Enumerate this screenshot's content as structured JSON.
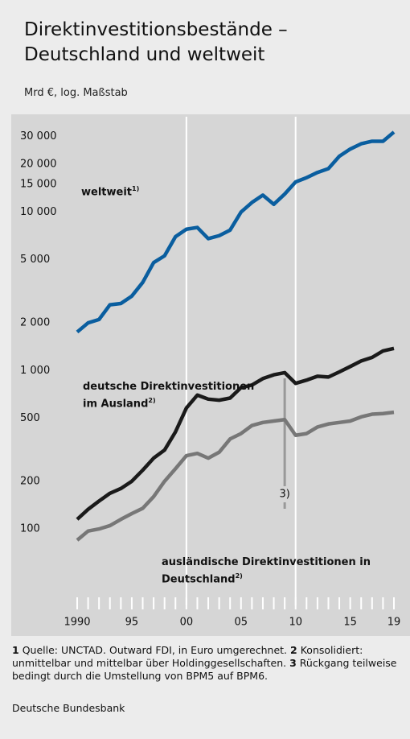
{
  "chart_data": {
    "type": "line",
    "title": "Direktinvestitionsbestände – Deutschland und weltweit",
    "subtitle": "Mrd €, log. Maßstab",
    "log_scale": true,
    "x": [
      1990,
      1991,
      1992,
      1993,
      1994,
      1995,
      1996,
      1997,
      1998,
      1999,
      2000,
      2001,
      2002,
      2003,
      2004,
      2005,
      2006,
      2007,
      2008,
      2009,
      2010,
      2011,
      2012,
      2013,
      2014,
      2015,
      2016,
      2017,
      2018,
      2019
    ],
    "series": [
      {
        "name": "weltweit",
        "note": "1)",
        "color": "#0a5e9f",
        "values": [
          1750,
          2000,
          2100,
          2600,
          2650,
          2950,
          3600,
          4800,
          5300,
          7000,
          7800,
          8000,
          6800,
          7100,
          7700,
          10000,
          11500,
          12800,
          11200,
          13000,
          15500,
          16500,
          17800,
          18800,
          22500,
          25000,
          27000,
          28000,
          28000,
          32000
        ]
      },
      {
        "name": "deutsche Direktinvestitionen im Ausland",
        "note": "2)",
        "color": "#1a1a1a",
        "values": [
          115,
          133,
          150,
          168,
          180,
          200,
          235,
          280,
          315,
          410,
          580,
          700,
          660,
          650,
          670,
          780,
          810,
          890,
          940,
          970,
          830,
          870,
          920,
          910,
          980,
          1060,
          1150,
          1210,
          1330,
          1380
        ]
      },
      {
        "name": "ausländische Direktinvestitionen in Deutschland",
        "note": "2)",
        "color": "#777777",
        "values": [
          85,
          97,
          100,
          105,
          115,
          125,
          135,
          160,
          200,
          240,
          290,
          300,
          280,
          305,
          370,
          400,
          450,
          470,
          480,
          490,
          390,
          400,
          440,
          460,
          470,
          480,
          510,
          530,
          535,
          545
        ]
      }
    ],
    "xlim": [
      1990,
      2019
    ],
    "xticks": [
      {
        "value": 1990,
        "label": "1990"
      },
      {
        "value": 1995,
        "label": "95"
      },
      {
        "value": 2000,
        "label": "00"
      },
      {
        "value": 2005,
        "label": "05"
      },
      {
        "value": 2010,
        "label": "10"
      },
      {
        "value": 2015,
        "label": "15"
      },
      {
        "value": 2019,
        "label": "19"
      }
    ],
    "xminorticks": [
      1990,
      1991,
      1992,
      1993,
      1994,
      1995,
      1996,
      1997,
      1998,
      1999,
      2000,
      2001,
      2002,
      2003,
      2004,
      2005,
      2006,
      2007,
      2008,
      2009,
      2010,
      2011,
      2012,
      2013,
      2014,
      2015,
      2016,
      2017,
      2018,
      2019
    ],
    "xgrid": [
      2000,
      2010
    ],
    "ylim": [
      30,
      40000
    ],
    "yticks": [
      {
        "value": 100,
        "label": "100"
      },
      {
        "value": 200,
        "label": "200"
      },
      {
        "value": 500,
        "label": "500"
      },
      {
        "value": 1000,
        "label": "1 000"
      },
      {
        "value": 2000,
        "label": "2 000"
      },
      {
        "value": 5000,
        "label": "5 000"
      },
      {
        "value": 10000,
        "label": "10 000"
      },
      {
        "value": 15000,
        "label": "15 000"
      },
      {
        "value": 20000,
        "label": "20 000"
      },
      {
        "value": 30000,
        "label": "30 000"
      }
    ],
    "annotation": {
      "x": 2009,
      "label": "3)"
    }
  },
  "footnotes": [
    {
      "number": "1",
      "text": "Quelle: UNCTAD. Outward FDI, in Euro umgerechnet."
    },
    {
      "number": "2",
      "text": "Konsolidiert: unmittelbar und mittelbar über Holdinggesellschaften."
    },
    {
      "number": "3",
      "text": "Rückgang teilweise bedingt durch die Umstellung von BPM5 auf BPM6."
    }
  ],
  "source": "Deutsche Bundesbank"
}
